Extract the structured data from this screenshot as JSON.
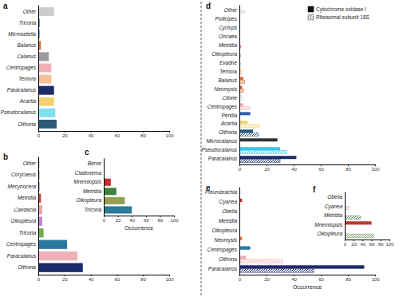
{
  "chart_data": [
    {
      "type": "bar",
      "title": "a",
      "orientation": "horizontal",
      "categories": [
        "Other",
        "Tricoria",
        "Microsetella",
        "Balanus",
        "Calanus",
        "Centropages",
        "Temora",
        "Paracalanus",
        "Acartia",
        "Pseudocalanus",
        "Oithona"
      ],
      "values": [
        12,
        1,
        1,
        2,
        8,
        10,
        10,
        12,
        12,
        13,
        14
      ],
      "colors": [
        "#cccccc",
        "#2a5ab0",
        "#3a7ac0",
        "#e07040",
        "#999999",
        "#f0b0b8",
        "#f5c09a",
        "#1f2a6b",
        "#f2d070",
        "#7fe0f0",
        "#2a5a7a"
      ],
      "xlim": [
        0,
        100
      ],
      "xticks": [
        0,
        20,
        40,
        60,
        80,
        100
      ]
    },
    {
      "type": "bar",
      "title": "b",
      "orientation": "horizontal",
      "categories": [
        "Other",
        "Corycaeus",
        "Mecynocera",
        "Metridia",
        "Candacia",
        "Oikopleura",
        "Tricoria",
        "Centropages",
        "Paracalanus",
        "Oithona"
      ],
      "values": [
        1,
        1,
        1,
        2,
        3,
        3,
        4,
        22,
        30,
        34
      ],
      "colors": [
        "#cccccc",
        "#aaaaaa",
        "#999999",
        "#d04040",
        "#f0a0a8",
        "#c080e0",
        "#70b050",
        "#2a7aa0",
        "#f0b0b8",
        "#1a2a6a"
      ],
      "xlim": [
        0,
        100
      ],
      "xticks": [
        0,
        20,
        40,
        60,
        80,
        100
      ]
    },
    {
      "type": "bar",
      "title": "c",
      "orientation": "horizontal",
      "x_label": "Occurrence",
      "categories": [
        "Beroe",
        "Cladonema",
        "Mnemiopsis",
        "Metridia",
        "Oikopleura",
        "Tricoria"
      ],
      "values": [
        0,
        0,
        10,
        18,
        30,
        40
      ],
      "colors": [
        "#cccccc",
        "#dddddd",
        "#c03030",
        "#408040",
        "#90a050",
        "#2a7a9a"
      ],
      "xlim": [
        0,
        100
      ],
      "xticks": [
        0,
        20,
        40,
        60,
        80,
        100
      ]
    },
    {
      "type": "bar",
      "title": "d",
      "orientation": "horizontal",
      "legend": "top-right",
      "categories": [
        "Other",
        "Pollicipes",
        "Cyclops",
        "Oncaea",
        "Metridia",
        "Oikopleura",
        "Evadne",
        "Temora",
        "Balanus",
        "Neomysis",
        "Clione",
        "Centropages",
        "Penilia",
        "Acartia",
        "Oithona",
        "Microcalanus",
        "Pseudocalanus",
        "Paracalanus"
      ],
      "series": [
        {
          "name": "Cytochrome oxidase I",
          "color": "#111111",
          "values": [
            0,
            0,
            0,
            0,
            0,
            0,
            0,
            1,
            3,
            2,
            2,
            3,
            8,
            6,
            10,
            28,
            30,
            42
          ]
        },
        {
          "name": "Ribosomal subunit 18S",
          "color": "#777777",
          "values": [
            4,
            0,
            0,
            0,
            1,
            1,
            1,
            2,
            4,
            3,
            3,
            8,
            0,
            15,
            14,
            0,
            35,
            30
          ]
        }
      ],
      "colors": [
        "#cccccc",
        "#bbbbbb",
        "#aaaaaa",
        "#999999",
        "#c05050",
        "#8fb060",
        "#d0d0d0",
        "#f5c09a",
        "#e07040",
        "#c06030",
        "#dddddd",
        "#f0b0b8",
        "#2a5ab0",
        "#f2d070",
        "#2a5a7a",
        "#333333",
        "#39c6e6",
        "#1f2a6b"
      ],
      "xlim": [
        0,
        100
      ],
      "xticks": [
        0,
        20,
        40,
        60,
        80,
        100
      ]
    },
    {
      "type": "bar",
      "title": "e",
      "orientation": "horizontal",
      "x_label": "Occurrence",
      "categories": [
        "Pleurobrachia",
        "Cyanea",
        "Obelia",
        "Metridia",
        "Oikopleura",
        "Neomysis",
        "Centropages",
        "Oithona",
        "Paracalanus"
      ],
      "series": [
        {
          "name": "Cytochrome oxidase I",
          "color": "#111111",
          "values": [
            0,
            2,
            0,
            0,
            0,
            2,
            8,
            5,
            92
          ]
        },
        {
          "name": "Ribosomal subunit 18S",
          "color": "#777777",
          "values": [
            0,
            0,
            0,
            0,
            0,
            0,
            0,
            32,
            55
          ]
        }
      ],
      "colors": [
        "#cccccc",
        "#c03030",
        "#dddddd",
        "#4a8a4a",
        "#90a050",
        "#e07040",
        "#2a7aa0",
        "#f0b0b8",
        "#1f2a6b"
      ],
      "xlim": [
        0,
        100
      ],
      "xticks": [
        0,
        20,
        40,
        60,
        80,
        100
      ]
    },
    {
      "type": "bar",
      "title": "f",
      "orientation": "horizontal",
      "categories": [
        "Obelia",
        "Cyanea",
        "Metridia",
        "Mnemiopsis",
        "Oikopleura"
      ],
      "series": [
        {
          "name": "Cytochrome oxidase I",
          "color": "#111111",
          "values": [
            2,
            0,
            0,
            60,
            0
          ]
        },
        {
          "name": "Ribosomal subunit 18S",
          "color": "#777777",
          "values": [
            0,
            10,
            35,
            0,
            65
          ]
        }
      ],
      "colors": [
        "#f2c25c",
        "#bbbbbb",
        "#4a8a4a",
        "#c0392b",
        "#7a9a5a"
      ],
      "xlim": [
        0,
        100
      ],
      "xticks": [
        0,
        20,
        40,
        60,
        80,
        100
      ]
    }
  ]
}
